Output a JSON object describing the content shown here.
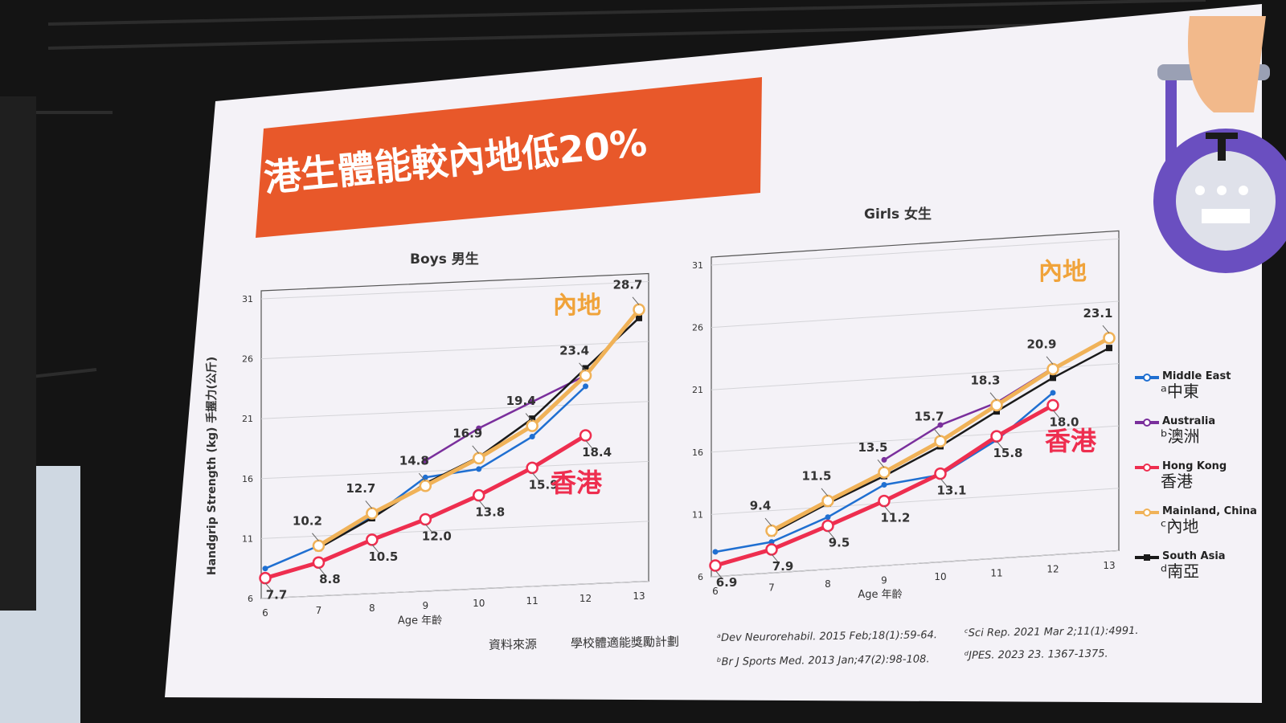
{
  "slide": {
    "title": "港生體能較內地低20%",
    "source_label": "資料來源",
    "source_value": "學校體適能獎勵計劃",
    "references": [
      "ᵃDev Neurorehabil. 2015 Feb;18(1):59-64.",
      "ᵇBr J Sports Med. 2013 Jan;47(2):98-108.",
      "ᶜSci Rep. 2021 Mar 2;11(1):4991.",
      "ᵈJPES. 2023 23. 1367-1375."
    ],
    "legend": [
      {
        "en": "Middle East",
        "zh": "ᵃ中東",
        "color": "#1f6fd1",
        "marker": "circle"
      },
      {
        "en": "Australia",
        "zh": "ᵇ澳洲",
        "color": "#7a2f9c",
        "marker": "circle"
      },
      {
        "en": "Hong Kong",
        "zh": "香港",
        "color": "#ee2e4f",
        "marker": "circle"
      },
      {
        "en": "Mainland, China",
        "zh": "ᶜ內地",
        "color": "#f0b258",
        "marker": "circle"
      },
      {
        "en": "South Asia",
        "zh": "ᵈ南亞",
        "color": "#1a1a1a",
        "marker": "square"
      }
    ],
    "colors": {
      "title_bg": "#e8582a",
      "slide_bg": "#f4f2f7",
      "grid": "#d4d4d8",
      "dumbbell": "#6a4fc0"
    }
  },
  "chart_data": [
    {
      "type": "line",
      "title": "Boys 男生",
      "xlabel": "Age 年齡",
      "ylabel": "Handgrip Strength (kg) 手握力(公斤)",
      "x": [
        6,
        7,
        8,
        9,
        10,
        11,
        12,
        13
      ],
      "ylim": [
        6,
        31
      ],
      "yticks": [
        6,
        11,
        16,
        21,
        26,
        31
      ],
      "grid": true,
      "callouts": {
        "mainland": "內地",
        "hongkong": "香港"
      },
      "series": [
        {
          "name": "Middle East",
          "values": [
            8.5,
            10.2,
            12.4,
            15.5,
            16.0,
            18.5,
            22.5,
            null
          ]
        },
        {
          "name": "Australia",
          "values": [
            null,
            null,
            null,
            16.9,
            19.4,
            21.4,
            23.4,
            null
          ]
        },
        {
          "name": "Hong Kong",
          "values": [
            7.7,
            8.8,
            10.5,
            12.0,
            13.8,
            15.9,
            18.4,
            null
          ]
        },
        {
          "name": "Mainland, China",
          "values": [
            null,
            10.2,
            12.7,
            14.8,
            16.9,
            19.4,
            23.4,
            28.7
          ]
        },
        {
          "name": "South Asia",
          "values": [
            null,
            10.0,
            12.3,
            15.0,
            17.0,
            20.0,
            24.0,
            28.0
          ]
        }
      ],
      "labels": {
        "Hong Kong": [
          "7.7",
          "8.8",
          "10.5",
          "12.0",
          "13.8",
          "15.9",
          "18.4",
          ""
        ],
        "Mainland, China": [
          "",
          "10.2",
          "12.7",
          "14.8",
          "16.9",
          "19.4",
          "23.4",
          "28.7"
        ]
      }
    },
    {
      "type": "line",
      "title": "Girls 女生",
      "xlabel": "Age 年齡",
      "ylabel": "",
      "x": [
        6,
        7,
        8,
        9,
        10,
        11,
        12,
        13
      ],
      "ylim": [
        6,
        31
      ],
      "yticks": [
        6,
        11,
        16,
        21,
        26,
        31
      ],
      "grid": true,
      "callouts": {
        "mainland": "內地",
        "hongkong": "香港"
      },
      "series": [
        {
          "name": "Middle East",
          "values": [
            8.0,
            8.5,
            10.2,
            12.5,
            13.0,
            15.5,
            19.0,
            null
          ]
        },
        {
          "name": "Australia",
          "values": [
            null,
            null,
            null,
            14.5,
            17.0,
            18.5,
            21.0,
            null
          ]
        },
        {
          "name": "Hong Kong",
          "values": [
            6.9,
            7.9,
            9.5,
            11.2,
            13.1,
            15.8,
            18.0,
            null
          ]
        },
        {
          "name": "Mainland, China",
          "values": [
            null,
            9.4,
            11.5,
            13.5,
            15.7,
            18.3,
            20.9,
            23.1
          ]
        },
        {
          "name": "South Asia",
          "values": [
            null,
            9.2,
            11.3,
            13.2,
            15.3,
            17.8,
            20.2,
            22.3
          ]
        }
      ],
      "labels": {
        "Hong Kong": [
          "6.9",
          "7.9",
          "9.5",
          "11.2",
          "13.1",
          "15.8",
          "18.0",
          ""
        ],
        "Mainland, China": [
          "",
          "9.4",
          "11.5",
          "13.5",
          "15.7",
          "18.3",
          "20.9",
          "23.1"
        ]
      }
    }
  ]
}
